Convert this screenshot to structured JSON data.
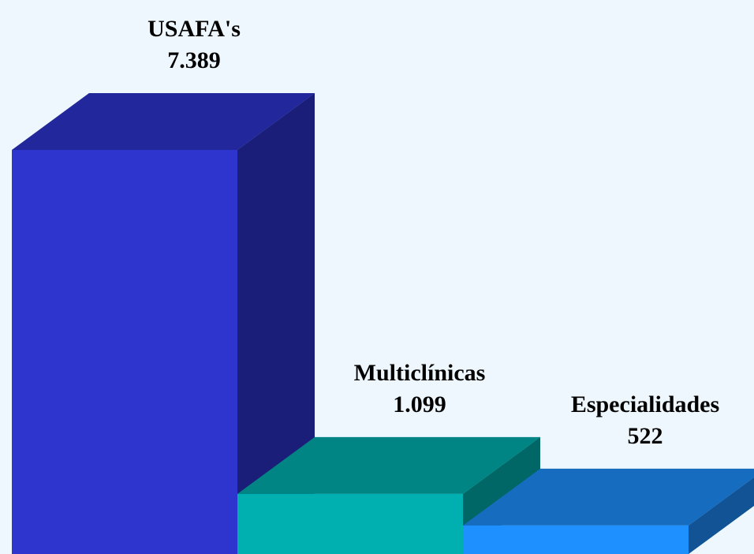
{
  "chart_data": {
    "type": "bar3d",
    "categories": [
      "USAFA's",
      "Multiclínicas",
      "Especialidades"
    ],
    "values": [
      7389,
      1099,
      522
    ],
    "value_labels": [
      "7.389",
      "1.099",
      "522"
    ],
    "colors": [
      "#2e35cf",
      "#00b0b0",
      "#1e90ff"
    ]
  }
}
